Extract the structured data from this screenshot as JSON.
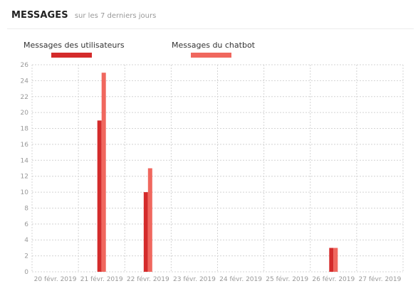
{
  "header": {
    "title": "MESSAGES",
    "subtitle": "sur les 7 derniers jours"
  },
  "chart_data": {
    "type": "bar",
    "title": "",
    "xlabel": "",
    "ylabel": "",
    "categories": [
      "20 févr. 2019",
      "21 févr. 2019",
      "22 févr. 2019",
      "23 févr. 2019",
      "24 févr. 2019",
      "25 févr. 2019",
      "26 févr. 2019",
      "27 févr. 2019"
    ],
    "series": [
      {
        "name": "Messages des utilisateurs",
        "color": "#d42b2b",
        "values": [
          0,
          19,
          10,
          0,
          0,
          0,
          3,
          0
        ]
      },
      {
        "name": "Messages du chatbot",
        "color": "#f0675e",
        "values": [
          0,
          25,
          13,
          0,
          0,
          0,
          3,
          0
        ]
      }
    ],
    "yticks": [
      "0",
      "2",
      "4",
      "6",
      "8",
      "10",
      "12",
      "14",
      "16",
      "18",
      "20",
      "22",
      "24",
      "26"
    ],
    "ylim": [
      0,
      26
    ],
    "grid": true,
    "legend_position": "top"
  }
}
